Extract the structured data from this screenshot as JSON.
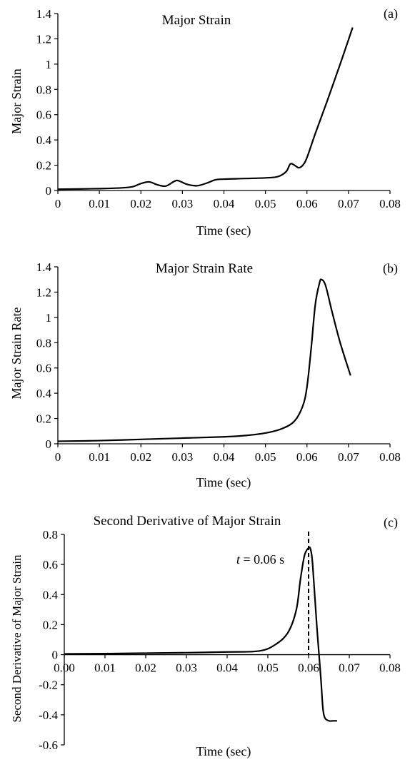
{
  "chart_data": [
    {
      "panel": "(a)",
      "type": "line",
      "title": "Major Strain",
      "xlabel": "Time (sec)",
      "ylabel": "Major Strain",
      "xlim": [
        0,
        0.08
      ],
      "ylim": [
        0,
        1.4
      ],
      "xticks": [
        "0",
        "0.01",
        "0.02",
        "0.03",
        "0.04",
        "0.05",
        "0.06",
        "0.07",
        "0.08"
      ],
      "yticks": [
        "0",
        "0.2",
        "0.4",
        "0.6",
        "0.8",
        "1",
        "1.2",
        "1.4"
      ],
      "grid": false,
      "series": [
        {
          "x": [
            0,
            0.005,
            0.01,
            0.015,
            0.018,
            0.02,
            0.022,
            0.024,
            0.026,
            0.028,
            0.029,
            0.031,
            0.033,
            0.034,
            0.036,
            0.038,
            0.04,
            0.045,
            0.05,
            0.053,
            0.055,
            0.056,
            0.057,
            0.058,
            0.059,
            0.06,
            0.062,
            0.065,
            0.068,
            0.071
          ],
          "y": [
            0.01,
            0.012,
            0.015,
            0.02,
            0.03,
            0.055,
            0.068,
            0.045,
            0.035,
            0.072,
            0.078,
            0.05,
            0.038,
            0.04,
            0.06,
            0.085,
            0.09,
            0.095,
            0.1,
            0.11,
            0.15,
            0.21,
            0.2,
            0.18,
            0.2,
            0.26,
            0.45,
            0.72,
            1.0,
            1.29
          ]
        }
      ]
    },
    {
      "panel": "(b)",
      "type": "line",
      "title": "Major Strain Rate",
      "xlabel": "Time (sec)",
      "ylabel": "Major Strain Rate",
      "xlim": [
        0,
        0.08
      ],
      "ylim": [
        0,
        1.4
      ],
      "xticks": [
        "0",
        "0.01",
        "0.02",
        "0.03",
        "0.04",
        "0.05",
        "0.06",
        "0.07",
        "0.08"
      ],
      "yticks": [
        "0",
        "0.2",
        "0.4",
        "0.6",
        "0.8",
        "1",
        "1.2",
        "1.4"
      ],
      "grid": false,
      "series": [
        {
          "x": [
            0,
            0.01,
            0.02,
            0.03,
            0.04,
            0.045,
            0.05,
            0.054,
            0.057,
            0.059,
            0.06,
            0.061,
            0.062,
            0.063,
            0.0635,
            0.0645,
            0.066,
            0.068,
            0.0705
          ],
          "y": [
            0.02,
            0.025,
            0.035,
            0.045,
            0.055,
            0.065,
            0.085,
            0.12,
            0.18,
            0.3,
            0.45,
            0.75,
            1.1,
            1.27,
            1.3,
            1.25,
            1.05,
            0.8,
            0.54
          ]
        }
      ]
    },
    {
      "panel": "(c)",
      "type": "line",
      "title": "Second Derivative of Major Strain",
      "xlabel": "Time (sec)",
      "ylabel": "Second Derivative of Major Strain",
      "xlim": [
        0,
        0.08
      ],
      "ylim": [
        -0.6,
        0.8
      ],
      "xticks": [
        "0.00",
        "0.01",
        "0.02",
        "0.03",
        "0.04",
        "0.05",
        "0.06",
        "0.07",
        "0.08"
      ],
      "yticks": [
        "-0.6",
        "-0.4",
        "-0.2",
        "0",
        "0.2",
        "0.4",
        "0.6",
        "0.8"
      ],
      "grid": false,
      "annotation": {
        "italic": "t",
        "text": " = 0.06 s",
        "x": 0.06
      },
      "series": [
        {
          "x": [
            0,
            0.01,
            0.02,
            0.03,
            0.04,
            0.048,
            0.052,
            0.055,
            0.057,
            0.058,
            0.059,
            0.06,
            0.0605,
            0.061,
            0.062,
            0.063,
            0.0635,
            0.064,
            0.065,
            0.066,
            0.067
          ],
          "y": [
            0.005,
            0.007,
            0.01,
            0.013,
            0.018,
            0.025,
            0.07,
            0.15,
            0.3,
            0.5,
            0.66,
            0.71,
            0.7,
            0.6,
            0.2,
            -0.15,
            -0.35,
            -0.42,
            -0.44,
            -0.44,
            -0.44
          ]
        }
      ]
    }
  ]
}
